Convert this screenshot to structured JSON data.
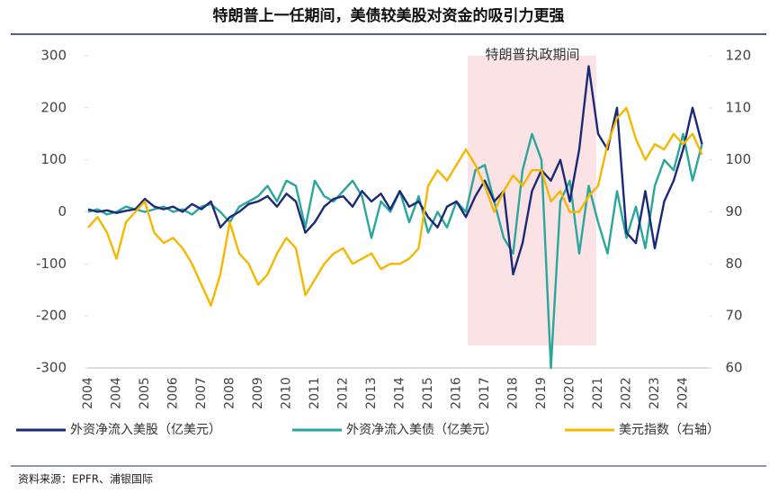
{
  "chart_data": {
    "type": "line",
    "title": "特朗普上一任期间，美债较美股对资金的吸引力更强",
    "annotation": "特朗普执政期间",
    "source": "资料来源：EPFR、浦银国际",
    "categories": [
      "2004",
      null,
      null,
      "2004",
      null,
      null,
      "2005",
      null,
      null,
      "2006",
      null,
      null,
      "2007",
      null,
      null,
      "2008",
      null,
      null,
      "2009",
      null,
      null,
      "2010",
      null,
      null,
      "2011",
      null,
      null,
      "2012",
      null,
      null,
      "2013",
      null,
      null,
      "2014",
      null,
      null,
      "2015",
      null,
      null,
      "2016",
      null,
      null,
      "2017",
      null,
      null,
      "2018",
      null,
      null,
      "2019",
      null,
      null,
      "2020",
      null,
      null,
      "2021",
      null,
      null,
      "2022",
      null,
      null,
      "2023",
      null,
      null,
      "2024",
      null,
      null
    ],
    "series": [
      {
        "name": "外资净流入美股（亿美元）",
        "color": "#1b2a78",
        "axis": "y",
        "values": [
          5,
          0,
          3,
          -2,
          2,
          5,
          25,
          10,
          5,
          10,
          0,
          15,
          5,
          20,
          -30,
          -10,
          0,
          15,
          20,
          30,
          10,
          35,
          20,
          -40,
          -20,
          10,
          25,
          30,
          10,
          40,
          20,
          35,
          5,
          40,
          10,
          20,
          -10,
          -30,
          10,
          20,
          -10,
          30,
          60,
          20,
          40,
          -120,
          -60,
          40,
          80,
          60,
          100,
          20,
          120,
          280,
          150,
          120,
          200,
          -40,
          -60,
          40,
          -70,
          20,
          60,
          120,
          200,
          130
        ]
      },
      {
        "name": "外资净流入美债（亿美元）",
        "color": "#2aa69b",
        "axis": "y",
        "values": [
          0,
          5,
          -5,
          0,
          10,
          5,
          0,
          5,
          10,
          0,
          5,
          -5,
          10,
          15,
          0,
          -20,
          10,
          20,
          30,
          50,
          20,
          60,
          50,
          -30,
          60,
          30,
          20,
          40,
          60,
          30,
          -50,
          20,
          0,
          40,
          -20,
          30,
          -40,
          0,
          -30,
          20,
          0,
          80,
          90,
          20,
          -50,
          -80,
          80,
          150,
          100,
          -300,
          20,
          60,
          -80,
          50,
          -20,
          -80,
          40,
          -50,
          10,
          -70,
          50,
          100,
          80,
          150,
          60,
          130
        ]
      },
      {
        "name": "美元指数（右轴）",
        "color": "#f5b700",
        "axis": "y2",
        "values": [
          87,
          89,
          86,
          81,
          88,
          90,
          92,
          86,
          84,
          85,
          83,
          80,
          76,
          72,
          78,
          88,
          82,
          80,
          76,
          78,
          82,
          85,
          83,
          74,
          77,
          80,
          82,
          83,
          80,
          81,
          82,
          79,
          80,
          80,
          81,
          83,
          95,
          98,
          96,
          99,
          102,
          99,
          95,
          90,
          94,
          97,
          95,
          98,
          98,
          92,
          94,
          90,
          90,
          93,
          95,
          103,
          108,
          110,
          104,
          100,
          103,
          102,
          105,
          103,
          105,
          101
        ]
      }
    ],
    "ylim": [
      -300,
      300
    ],
    "yticks": [
      -300,
      -200,
      -100,
      0,
      100,
      200,
      300
    ],
    "y2lim": [
      60,
      120
    ],
    "y2ticks": [
      60,
      70,
      80,
      90,
      100,
      110,
      120
    ]
  }
}
